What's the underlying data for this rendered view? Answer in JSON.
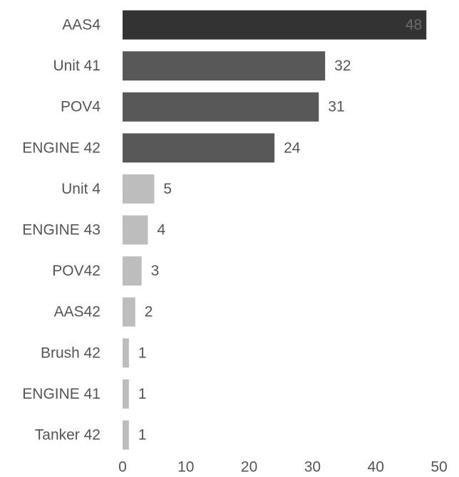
{
  "chart_data": {
    "type": "bar",
    "orientation": "horizontal",
    "categories": [
      "AAS4",
      "Unit 41",
      "POV4",
      "ENGINE 42",
      "Unit 4",
      "ENGINE 43",
      "POV42",
      "AAS42",
      "Brush 42",
      "ENGINE 41",
      "Tanker 42"
    ],
    "values": [
      48,
      32,
      31,
      24,
      5,
      4,
      3,
      2,
      1,
      1,
      1
    ],
    "xlim": [
      0,
      50
    ],
    "xticks": [
      0,
      10,
      20,
      30,
      40,
      50
    ],
    "title": "",
    "xlabel": "",
    "ylabel": "",
    "grid": false,
    "colors": {
      "top": "#333333",
      "high": "#585858",
      "low": "#bdbdbd"
    },
    "highlight_threshold": 10
  }
}
